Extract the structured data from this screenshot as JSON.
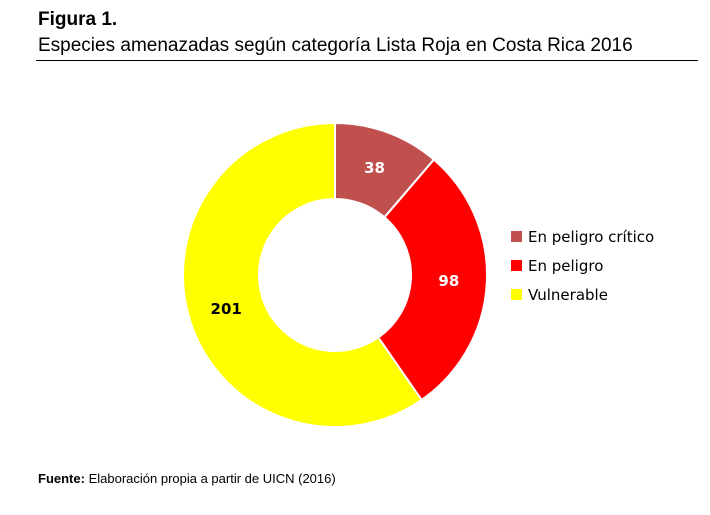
{
  "figure": {
    "label": "Figura 1.",
    "title": "Especies amenazadas según categoría Lista Roja en Costa Rica 2016"
  },
  "chart_data": {
    "type": "pie",
    "variant": "donut",
    "categories": [
      "En peligro crítico",
      "En peligro",
      "Vulnerable"
    ],
    "values": [
      38,
      98,
      201
    ],
    "colors": [
      "#c0504d",
      "#ff0000",
      "#ffff00"
    ],
    "data_labels": [
      "38",
      "98",
      "201"
    ],
    "data_label_colors": [
      "#ffffff",
      "#ffffff",
      "#000000"
    ],
    "legend_position": "right"
  },
  "source": {
    "label": "Fuente:",
    "text": " Elaboración propia a partir de UICN (2016)"
  }
}
